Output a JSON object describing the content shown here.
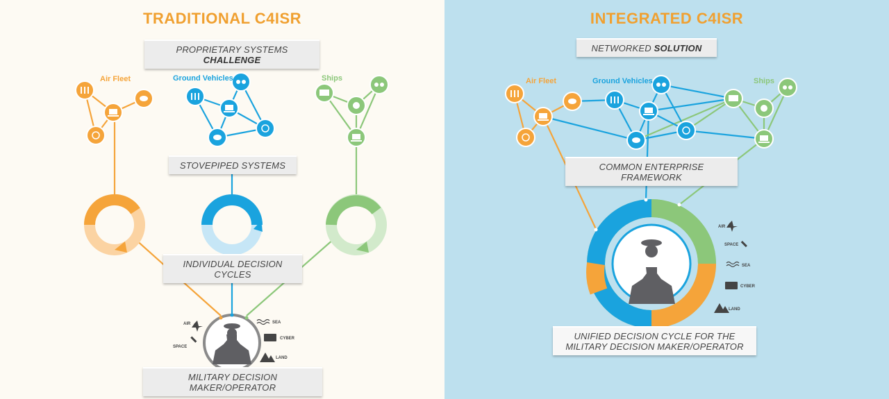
{
  "left": {
    "title": "TRADITIONAL C4ISR",
    "subtitle_prefix": "PROPRIETARY SYSTEMS",
    "subtitle_strong": "CHALLENGE",
    "groups": {
      "air": "Air Fleet",
      "ground": "Ground Vehicles",
      "ships": "Ships"
    },
    "stovepiped": "STOVEPIPED SYSTEMS",
    "individual_cycles": "INDIVIDUAL DECISION CYCLES",
    "operator": "MILITARY DECISION MAKER/OPERATOR"
  },
  "right": {
    "title": "INTEGRATED C4ISR",
    "subtitle_prefix": "NETWORKED",
    "subtitle_strong": "SOLUTION",
    "groups": {
      "air": "Air Fleet",
      "ground": "Ground Vehicles",
      "ships": "Ships"
    },
    "framework": "COMMON ENTERPRISE FRAMEWORK",
    "unified_line1": "UNIFIED DECISION CYCLE FOR THE",
    "unified_line2": "MILITARY DECISION MAKER/OPERATOR"
  },
  "domains": {
    "air": "AIR",
    "space": "SPACE",
    "sea": "SEA",
    "cyber": "CYBER",
    "land": "LAND"
  },
  "colors": {
    "air": "#f5a43a",
    "ground": "#1aa3de",
    "ships": "#8cc77a",
    "left_bg": "#fdfaf3",
    "right_bg": "#bde0ee"
  },
  "icons": [
    "mixer-icon",
    "chat-icon",
    "laptop-icon",
    "target-icon",
    "binoculars-icon",
    "server-icon",
    "brain-icon",
    "jet-icon",
    "satellite-icon",
    "waves-icon",
    "keyboard-icon",
    "mountain-icon"
  ]
}
